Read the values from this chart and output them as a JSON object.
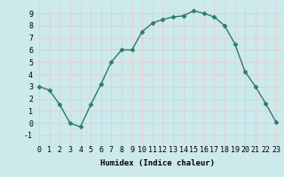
{
  "x": [
    0,
    1,
    2,
    3,
    4,
    5,
    6,
    7,
    8,
    9,
    10,
    11,
    12,
    13,
    14,
    15,
    16,
    17,
    18,
    19,
    20,
    21,
    22,
    23
  ],
  "y": [
    3.0,
    2.7,
    1.5,
    0.0,
    -0.3,
    1.5,
    3.2,
    5.0,
    6.0,
    6.0,
    7.5,
    8.2,
    8.5,
    8.7,
    8.8,
    9.2,
    9.0,
    8.7,
    8.0,
    6.5,
    4.2,
    3.0,
    1.6,
    0.1
  ],
  "line_color": "#2d7a6e",
  "marker": "D",
  "marker_size": 2.5,
  "bg_color": "#cce9ec",
  "grid_color": "#e8c8c8",
  "xlabel": "Humidex (Indice chaleur)",
  "xlim": [
    -0.5,
    23.5
  ],
  "ylim": [
    -1.8,
    9.8
  ],
  "yticks": [
    -1,
    0,
    1,
    2,
    3,
    4,
    5,
    6,
    7,
    8,
    9
  ],
  "xticks": [
    0,
    1,
    2,
    3,
    4,
    5,
    6,
    7,
    8,
    9,
    10,
    11,
    12,
    13,
    14,
    15,
    16,
    17,
    18,
    19,
    20,
    21,
    22,
    23
  ],
  "xlabel_fontsize": 6.5,
  "tick_fontsize": 6.0,
  "linewidth": 1.0
}
